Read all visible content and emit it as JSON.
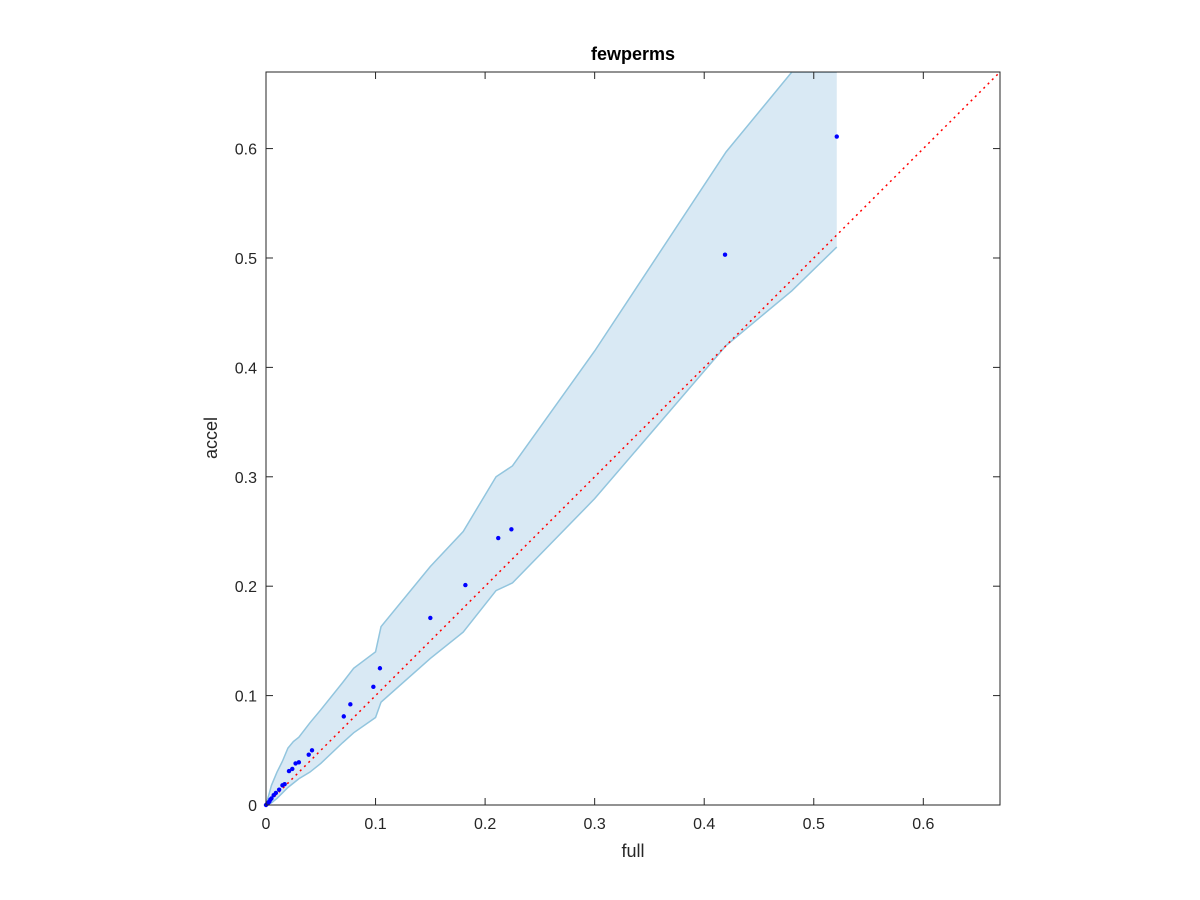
{
  "chart_data": {
    "type": "scatter",
    "title": "fewperms",
    "xlabel": "full",
    "ylabel": "accel",
    "xlim": [
      0,
      0.67
    ],
    "ylim": [
      0,
      0.67
    ],
    "xticks": [
      "0",
      "0.1",
      "0.2",
      "0.3",
      "0.4",
      "0.5",
      "0.6"
    ],
    "yticks": [
      "0",
      "0.1",
      "0.2",
      "0.3",
      "0.4",
      "0.5",
      "0.6"
    ],
    "tick_values": [
      0,
      0.1,
      0.2,
      0.3,
      0.4,
      0.5,
      0.6
    ],
    "grid": false,
    "legend": "none",
    "points": {
      "color": "#0000ff",
      "x": [
        0.0,
        0.001,
        0.002,
        0.003,
        0.004,
        0.005,
        0.007,
        0.009,
        0.012,
        0.015,
        0.017,
        0.021,
        0.024,
        0.027,
        0.03,
        0.039,
        0.042,
        0.071,
        0.077,
        0.098,
        0.104,
        0.15,
        0.182,
        0.212,
        0.224,
        0.419,
        0.521
      ],
      "y": [
        0.0,
        0.001,
        0.002,
        0.003,
        0.005,
        0.006,
        0.009,
        0.011,
        0.014,
        0.018,
        0.019,
        0.031,
        0.033,
        0.038,
        0.039,
        0.046,
        0.05,
        0.081,
        0.092,
        0.108,
        0.125,
        0.171,
        0.201,
        0.244,
        0.252,
        0.503,
        0.611
      ]
    },
    "band": {
      "fill": "#d9e9f4",
      "edge": "#92c5de",
      "x": [
        0.0,
        0.005,
        0.01,
        0.015,
        0.02,
        0.025,
        0.03,
        0.04,
        0.05,
        0.07,
        0.08,
        0.1,
        0.105,
        0.15,
        0.18,
        0.21,
        0.225,
        0.3,
        0.42,
        0.48,
        0.521
      ],
      "upper": [
        0.0,
        0.018,
        0.03,
        0.04,
        0.052,
        0.058,
        0.062,
        0.075,
        0.087,
        0.112,
        0.125,
        0.14,
        0.163,
        0.218,
        0.25,
        0.3,
        0.31,
        0.415,
        0.597,
        0.67,
        0.67
      ],
      "lower": [
        0.0,
        0.002,
        0.006,
        0.011,
        0.016,
        0.02,
        0.024,
        0.03,
        0.038,
        0.057,
        0.066,
        0.08,
        0.094,
        0.134,
        0.158,
        0.196,
        0.203,
        0.28,
        0.42,
        0.47,
        0.51
      ]
    },
    "reference_line": {
      "color": "#ff0000",
      "style": "dotted",
      "x": [
        0,
        0.67
      ],
      "y": [
        0,
        0.67
      ]
    }
  }
}
